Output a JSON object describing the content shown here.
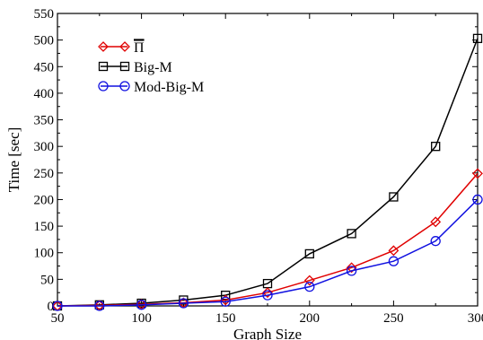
{
  "chart_data": {
    "type": "line",
    "title": "",
    "xlabel": "Graph Size",
    "ylabel": "Time [sec]",
    "xlim": [
      50,
      300
    ],
    "ylim": [
      0,
      550
    ],
    "x_ticks": [
      50,
      100,
      150,
      200,
      250,
      300
    ],
    "y_ticks": [
      0,
      50,
      100,
      150,
      200,
      250,
      300,
      350,
      400,
      450,
      500,
      550
    ],
    "x": [
      50,
      75,
      100,
      125,
      150,
      175,
      200,
      225,
      250,
      275,
      300
    ],
    "grid": false,
    "legend_position": "top-left",
    "series": [
      {
        "name": "Π",
        "overline": true,
        "color": "#e00000",
        "marker": "diamond",
        "values": [
          0,
          1,
          3,
          6,
          11,
          25,
          48,
          72,
          104,
          158,
          249
        ]
      },
      {
        "name": "Big-M",
        "color": "#000000",
        "marker": "square",
        "values": [
          0,
          2,
          5,
          11,
          20,
          42,
          98,
          136,
          205,
          300,
          503
        ]
      },
      {
        "name": "Mod-Big-M",
        "color": "#1010e0",
        "marker": "circle",
        "values": [
          0,
          0,
          2,
          5,
          8,
          20,
          36,
          66,
          84,
          122,
          200
        ]
      }
    ]
  }
}
